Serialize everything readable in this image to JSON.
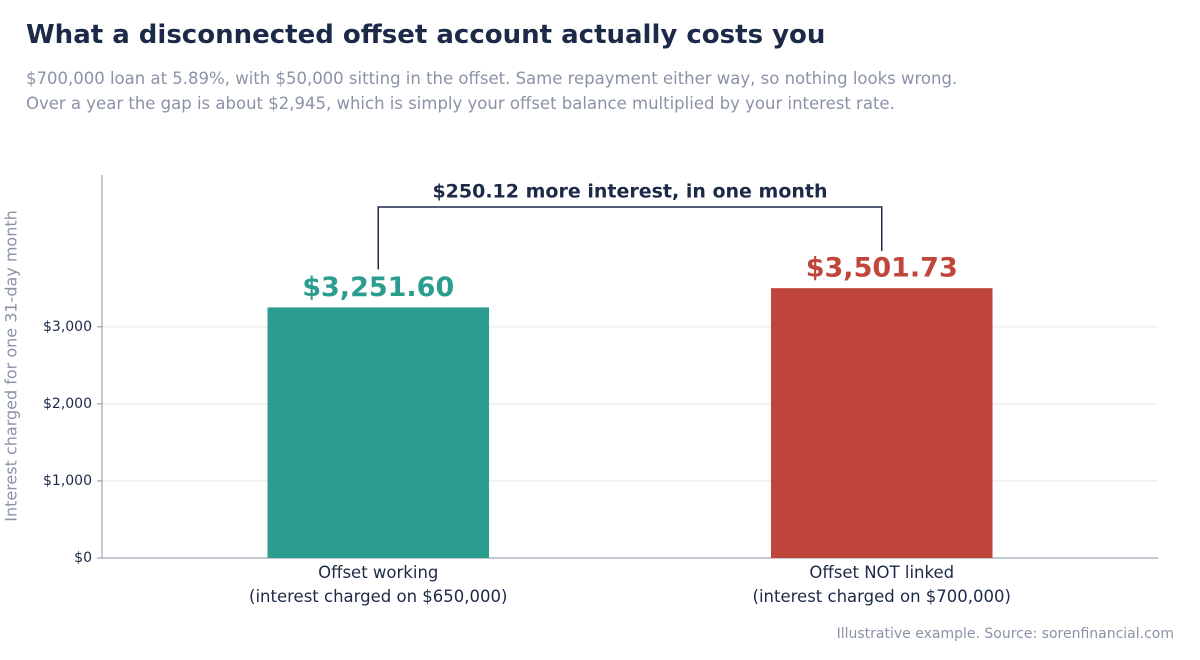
{
  "chart_data": {
    "type": "bar",
    "title": "What a disconnected offset account actually costs you",
    "subtitle": [
      "$700,000 loan at 5.89%, with $50,000 sitting in the offset. Same repayment either way, so nothing looks wrong.",
      "Over a year the gap is about $2,945, which is simply your offset balance multiplied by your interest rate."
    ],
    "y_label": "Interest charged for one 31-day month",
    "categories": [
      "Offset working\n(interest charged on $650,000)",
      "Offset NOT linked\n(interest charged on $700,000)"
    ],
    "values": [
      3251.6,
      3501.73
    ],
    "value_labels": [
      "$3,251.60",
      "$3,501.73"
    ],
    "colors": [
      "#2a9d8f",
      "#c0463c"
    ],
    "annotation": "$250.12 more interest, in one month",
    "ylim": [
      0,
      4970
    ],
    "yticks": [
      {
        "value": 0,
        "label": "$0"
      },
      {
        "value": 1000,
        "label": "$1,000"
      },
      {
        "value": 2000,
        "label": "$2,000"
      },
      {
        "value": 3000,
        "label": "$3,000"
      }
    ],
    "grid": true,
    "source": "Illustrative example. Source: sorenfinancial.com"
  }
}
